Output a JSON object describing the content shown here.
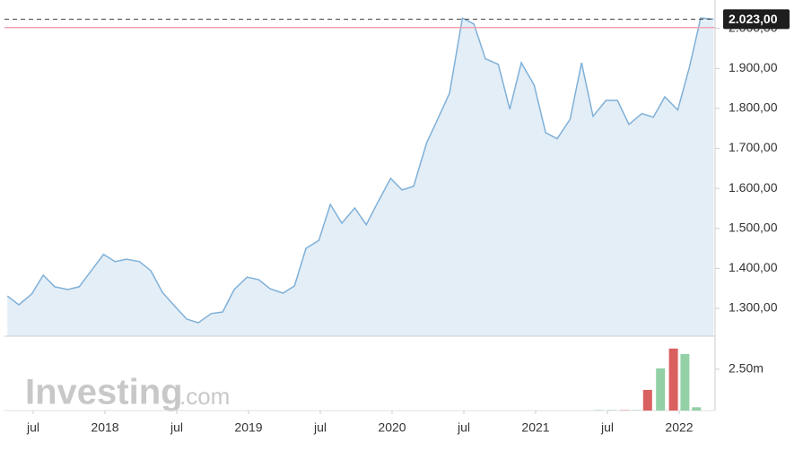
{
  "chart_data": {
    "type": "area",
    "x": [
      2017.32,
      2017.4,
      2017.49,
      2017.57,
      2017.65,
      2017.74,
      2017.82,
      2017.9,
      2017.99,
      2018.07,
      2018.15,
      2018.24,
      2018.32,
      2018.4,
      2018.49,
      2018.57,
      2018.65,
      2018.74,
      2018.82,
      2018.9,
      2018.99,
      2019.07,
      2019.15,
      2019.24,
      2019.32,
      2019.4,
      2019.49,
      2019.57,
      2019.65,
      2019.74,
      2019.82,
      2019.9,
      2019.99,
      2020.07,
      2020.15,
      2020.24,
      2020.32,
      2020.4,
      2020.49,
      2020.57,
      2020.65,
      2020.74,
      2020.82,
      2020.9,
      2020.99,
      2021.07,
      2021.15,
      2021.24,
      2021.32,
      2021.4,
      2021.49,
      2021.57,
      2021.65,
      2021.74,
      2021.82,
      2021.9,
      2021.99,
      2022.07,
      2022.15,
      2022.24
    ],
    "series": [
      {
        "color": "#7fb0d8",
        "fill": "#e4eef7",
        "values": [
          1331,
          1309,
          1336,
          1383,
          1354,
          1347,
          1354,
          1392,
          1435,
          1417,
          1423,
          1417,
          1394,
          1340,
          1304,
          1273,
          1264,
          1287,
          1291,
          1347,
          1378,
          1372,
          1349,
          1338,
          1356,
          1450,
          1470,
          1560,
          1513,
          1551,
          1509,
          1565,
          1625,
          1596,
          1605,
          1713,
          1775,
          1838,
          2026,
          2011,
          1924,
          1910,
          1798,
          1914,
          1858,
          1739,
          1724,
          1773,
          1914,
          1780,
          1820,
          1820,
          1760,
          1787,
          1778,
          1829,
          1796,
          1901,
          2026,
          2023
        ]
      }
    ],
    "xlim": [
      2017.3,
      2022.25
    ],
    "xticks": [
      {
        "value": 2017.5,
        "label": "jul"
      },
      2018,
      {
        "value": 2018.5,
        "label": "jul"
      },
      2019,
      {
        "value": 2019.5,
        "label": "jul"
      },
      2020,
      {
        "value": 2020.5,
        "label": "jul"
      },
      2021,
      {
        "value": 2021.5,
        "label": "jul"
      },
      2022
    ],
    "ylim": [
      1230.5,
      2071
    ],
    "yticks": [
      {
        "value": 1300,
        "label": "1.300,00"
      },
      {
        "value": 1400,
        "label": "1.400,00"
      },
      {
        "value": 1500,
        "label": "1.500,00"
      },
      {
        "value": 1600,
        "label": "1.600,00"
      },
      {
        "value": 1700,
        "label": "1.700,00"
      },
      {
        "value": 1800,
        "label": "1.800,00"
      },
      {
        "value": 1900,
        "label": "1.900,00"
      },
      {
        "value": 2000,
        "label": "2.000,00"
      }
    ],
    "current_price": {
      "value": 2023,
      "label": "2.023,00"
    },
    "reference_line": {
      "value": 2002,
      "color": "#f4a3b4"
    },
    "volume": {
      "x": [
        2021.44,
        2021.53,
        2021.62,
        2021.7,
        2021.78,
        2021.87,
        2021.96,
        2022.04,
        2022.12
      ],
      "values": [
        0.03,
        0.03,
        0.03,
        0.03,
        1.25,
        2.55,
        3.75,
        3.42,
        0.2
      ],
      "colors": [
        "#9fd0b0",
        "#9fd0b0",
        "#d98a8a",
        "#9fd0b0",
        "#d9605f",
        "#93d0a6",
        "#d9605f",
        "#93d0a6",
        "#93d0a6"
      ],
      "ylim": [
        0,
        4.5
      ],
      "yticks": [
        {
          "value": 2.5,
          "label": "2.50m"
        }
      ]
    },
    "watermark_brand": "Investing",
    "watermark_suffix": ".com"
  }
}
